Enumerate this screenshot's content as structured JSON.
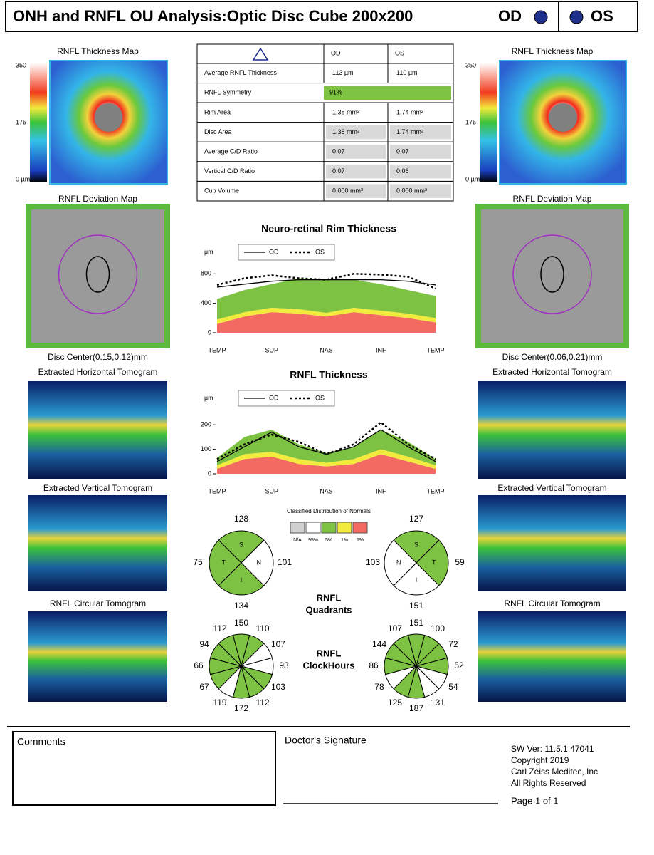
{
  "header": {
    "title": "ONH and RNFL OU Analysis:Optic Disc Cube 200x200",
    "od": "OD",
    "os": "OS"
  },
  "od_panel": {
    "thickness_map_title": "RNFL Thickness Map",
    "scale": [
      "350",
      "175",
      "0 µm"
    ],
    "deviation_map_title": "RNFL Deviation Map",
    "disc_center": "Disc Center(0.15,0.12)mm",
    "horizontal_title": "Extracted Horizontal Tomogram",
    "vertical_title": "Extracted Vertical Tomogram",
    "circular_title": "RNFL Circular Tomogram"
  },
  "os_panel": {
    "thickness_map_title": "RNFL Thickness Map",
    "scale": [
      "350",
      "175",
      "0 µm"
    ],
    "deviation_map_title": "RNFL Deviation Map",
    "disc_center": "Disc Center(0.06,0.21)mm",
    "horizontal_title": "Extracted Horizontal Tomogram",
    "vertical_title": "Extracted Vertical Tomogram",
    "circular_title": "RNFL Circular Tomogram"
  },
  "table": {
    "header": [
      "OD",
      "OS"
    ],
    "rows": [
      [
        "Average RNFL Thickness",
        "113 µm",
        "110 µm"
      ],
      [
        "RNFL Symmetry",
        "91%"
      ],
      [
        "Rim Area",
        "1.38 mm²",
        "1.74 mm²"
      ],
      [
        "Disc Area",
        "1.38 mm²",
        "1.74 mm²"
      ],
      [
        "Average C/D Ratio",
        "0.07",
        "0.07"
      ],
      [
        "Vertical C/D Ratio",
        "0.07",
        "0.06"
      ],
      [
        "Cup Volume",
        "0.000 mm³",
        "0.000 mm³"
      ]
    ],
    "symmetry_color": "#7dc242"
  },
  "rim_chart": {
    "type": "line",
    "title": "Neuro-retinal Rim Thickness",
    "y_label": "µm",
    "categories": [
      "TEMP",
      null,
      "SUP",
      null,
      "NAS",
      null,
      "INF",
      null,
      "TEMP"
    ],
    "ylim": [
      0,
      900
    ],
    "yticks": [
      0,
      400,
      800
    ],
    "bands": [
      {
        "color": "#f26a62",
        "values": [
          120,
          220,
          280,
          260,
          220,
          280,
          240,
          200,
          140
        ]
      },
      {
        "color": "#f2ea3c",
        "values": [
          60,
          60,
          60,
          60,
          50,
          60,
          60,
          60,
          60
        ]
      },
      {
        "color": "#7dc242",
        "values": [
          280,
          300,
          320,
          420,
          450,
          380,
          360,
          320,
          300
        ]
      }
    ],
    "series": [
      {
        "name": "OD",
        "color": "#000000",
        "style": "solid",
        "values": [
          620,
          660,
          700,
          720,
          720,
          720,
          720,
          700,
          650
        ]
      },
      {
        "name": "OS",
        "color": "#000000",
        "style": "dotted",
        "values": [
          650,
          740,
          780,
          740,
          720,
          800,
          790,
          760,
          600
        ]
      }
    ]
  },
  "rnfl_chart": {
    "type": "line",
    "title": "RNFL Thickness",
    "y_label": "µm",
    "categories": [
      "TEMP",
      null,
      "SUP",
      null,
      "NAS",
      null,
      "INF",
      null,
      "TEMP"
    ],
    "ylim": [
      0,
      250
    ],
    "yticks": [
      0,
      100,
      200
    ],
    "bands": [
      {
        "color": "#f26a62",
        "values": [
          20,
          60,
          70,
          40,
          30,
          40,
          80,
          50,
          20
        ]
      },
      {
        "color": "#f2ea3c",
        "values": [
          15,
          20,
          20,
          20,
          15,
          20,
          20,
          20,
          15
        ]
      },
      {
        "color": "#7dc242",
        "values": [
          30,
          70,
          90,
          60,
          40,
          50,
          80,
          60,
          25
        ]
      }
    ],
    "series": [
      {
        "name": "OD",
        "color": "#000000",
        "style": "solid",
        "values": [
          50,
          110,
          170,
          110,
          80,
          110,
          180,
          110,
          50
        ]
      },
      {
        "name": "OS",
        "color": "#000000",
        "style": "dotted",
        "values": [
          60,
          120,
          160,
          130,
          80,
          120,
          210,
          120,
          60
        ]
      }
    ]
  },
  "classification": {
    "title": "Classified Distribution of Normals",
    "items": [
      {
        "label": "N/A",
        "color": "#d0d0d0"
      },
      {
        "label": "95%",
        "color": "#ffffff"
      },
      {
        "label": "5%",
        "color": "#7dc242"
      },
      {
        "label": "1%",
        "color": "#f2ea3c"
      },
      {
        "label": "1%",
        "color": "#f26a62"
      }
    ]
  },
  "quadrants_label": [
    "RNFL",
    "Quadrants"
  ],
  "clockhours_label": [
    "RNFL",
    "ClockHours"
  ],
  "od_quadrants": [
    {
      "label": "S",
      "value": 128,
      "color": "#7dc242"
    },
    {
      "label": "N",
      "value": 101,
      "color": "#ffffff"
    },
    {
      "label": "I",
      "value": 134,
      "color": "#7dc242"
    },
    {
      "label": "T",
      "value": 75,
      "color": "#7dc242"
    }
  ],
  "os_quadrants": [
    {
      "label": "S",
      "value": 127,
      "color": "#7dc242"
    },
    {
      "label": "T",
      "value": 59,
      "color": "#7dc242"
    },
    {
      "label": "I",
      "value": 151,
      "color": "#ffffff"
    },
    {
      "label": "N",
      "value": 103,
      "color": "#ffffff"
    }
  ],
  "od_clock": [
    {
      "value": 150,
      "color": "#7dc242"
    },
    {
      "value": 110,
      "color": "#7dc242"
    },
    {
      "value": 107,
      "color": "#ffffff"
    },
    {
      "value": 93,
      "color": "#ffffff"
    },
    {
      "value": 103,
      "color": "#7dc242"
    },
    {
      "value": 112,
      "color": "#7dc242"
    },
    {
      "value": 172,
      "color": "#7dc242"
    },
    {
      "value": 119,
      "color": "#ffffff"
    },
    {
      "value": 67,
      "color": "#7dc242"
    },
    {
      "value": 66,
      "color": "#7dc242"
    },
    {
      "value": 94,
      "color": "#7dc242"
    },
    {
      "value": 112,
      "color": "#7dc242"
    }
  ],
  "os_clock": [
    {
      "value": 151,
      "color": "#7dc242"
    },
    {
      "value": 100,
      "color": "#7dc242"
    },
    {
      "value": 72,
      "color": "#7dc242"
    },
    {
      "value": 52,
      "color": "#7dc242"
    },
    {
      "value": 54,
      "color": "#ffffff"
    },
    {
      "value": 131,
      "color": "#ffffff"
    },
    {
      "value": 187,
      "color": "#7dc242"
    },
    {
      "value": 125,
      "color": "#7dc242"
    },
    {
      "value": 78,
      "color": "#ffffff"
    },
    {
      "value": 86,
      "color": "#7dc242"
    },
    {
      "value": 144,
      "color": "#7dc242"
    },
    {
      "value": 107,
      "color": "#7dc242"
    }
  ],
  "footer": {
    "comments": "Comments",
    "signature": "Doctor's Signature",
    "info": [
      "SW Ver: 11.5.1.47041",
      "Copyright 2019",
      "Carl Zeiss Meditec, Inc",
      "All Rights Reserved"
    ],
    "page": "Page 1 of 1"
  }
}
